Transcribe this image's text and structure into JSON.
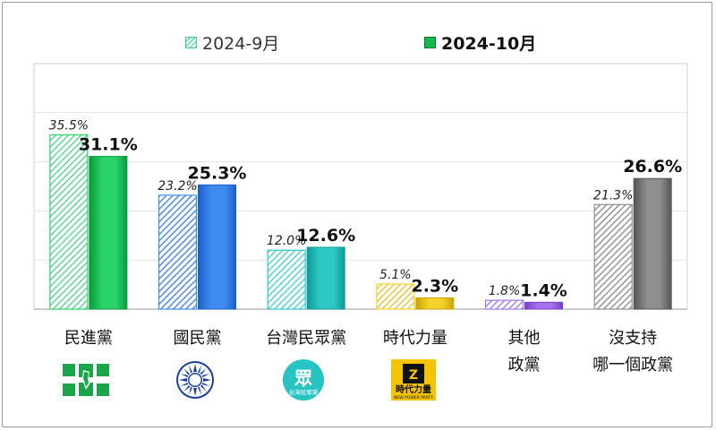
{
  "legend": {
    "sep_label": "2024-9月",
    "oct_label": "2024-10月"
  },
  "chart_data": {
    "type": "bar",
    "categories": [
      "民進黨",
      "國民黨",
      "台灣民眾黨",
      "時代力量",
      "其他政黨",
      "沒支持哪一個政黨"
    ],
    "category_lines": [
      [
        "民進黨"
      ],
      [
        "國民黨"
      ],
      [
        "台灣民眾黨"
      ],
      [
        "時代力量"
      ],
      [
        "其他",
        "政黨"
      ],
      [
        "沒支持",
        "哪一個政黨"
      ]
    ],
    "series": [
      {
        "name": "2024-9月",
        "values": [
          35.5,
          23.2,
          12.0,
          5.1,
          1.8,
          21.3
        ],
        "labels": [
          "35.5%",
          "23.2%",
          "12.0%",
          "5.1%",
          "1.8%",
          "21.3%"
        ]
      },
      {
        "name": "2024-10月",
        "values": [
          31.1,
          25.3,
          12.6,
          2.3,
          1.4,
          26.6
        ],
        "labels": [
          "31.1%",
          "25.3%",
          "12.6%",
          "2.3%",
          "1.4%",
          "26.6%"
        ]
      }
    ],
    "ylim": [
      0,
      50
    ],
    "grid": true,
    "legend_position": "top-center",
    "party_colors": [
      {
        "dark": "#0a9a3c",
        "light": "#2ad46a",
        "hatch": "#67d89a"
      },
      {
        "dark": "#1c5fcf",
        "light": "#3f8cf0",
        "hatch": "#5b8ee8"
      },
      {
        "dark": "#0e9a9a",
        "light": "#2fc9c4",
        "hatch": "#5ad6cf"
      },
      {
        "dark": "#c9a400",
        "light": "#f4d22a",
        "hatch": "#e9c94a"
      },
      {
        "dark": "#7a3ec9",
        "light": "#a774f0",
        "hatch": "#a98be8"
      },
      {
        "dark": "#555555",
        "light": "#8f8f8f",
        "hatch": "#9a9a9a"
      }
    ]
  },
  "logos": [
    {
      "icon": "dpp-flag-icon"
    },
    {
      "icon": "kmt-sun-icon"
    },
    {
      "icon": "tpp-logo-icon",
      "text_main": "眾",
      "text_sub": "台灣民眾黨"
    },
    {
      "icon": "npp-logo-icon",
      "text_main": "時代力量",
      "text_sub": "NEW POWER PARTY"
    }
  ]
}
